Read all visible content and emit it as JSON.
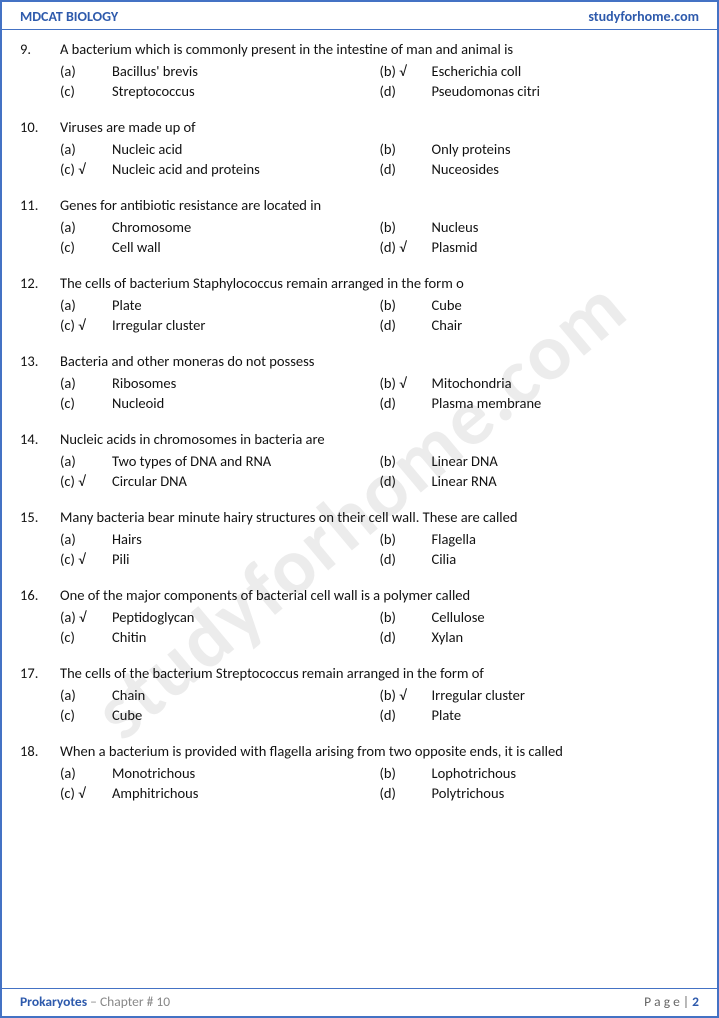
{
  "header": {
    "left": "MDCAT BIOLOGY",
    "right": "studyforhome.com"
  },
  "watermark": "studyforhome.com",
  "footer": {
    "subject": "Prokaryotes",
    "chapter": " – Chapter # 10",
    "page_label": "P a g e  | ",
    "page_num": "2"
  },
  "colors": {
    "border": "#4472c4",
    "heading": "#2e5aac",
    "text": "#111111",
    "muted": "#888888",
    "watermark": "rgba(128,128,128,0.15)"
  },
  "questions": [
    {
      "num": "9.",
      "text": "A bacterium which is commonly present in the intestine of man and animal is",
      "options": [
        {
          "label": "(a)",
          "text": "Bacillus' brevis",
          "correct": false
        },
        {
          "label": "(b) √",
          "text": "Escherichia coll",
          "correct": true
        },
        {
          "label": "(c)",
          "text": "Streptococcus",
          "correct": false
        },
        {
          "label": "(d)",
          "text": "Pseudomonas citri",
          "correct": false
        }
      ]
    },
    {
      "num": "10.",
      "text": "Viruses are made up of",
      "options": [
        {
          "label": "(a)",
          "text": "Nucleic acid",
          "correct": false
        },
        {
          "label": "(b)",
          "text": "Only proteins",
          "correct": false
        },
        {
          "label": "(c) √",
          "text": "Nucleic acid and proteins",
          "correct": true
        },
        {
          "label": "(d)",
          "text": "Nuceosides",
          "correct": false
        }
      ]
    },
    {
      "num": "11.",
      "text": "Genes for antibiotic resistance are located in",
      "options": [
        {
          "label": "(a)",
          "text": "Chromosome",
          "correct": false
        },
        {
          "label": "(b)",
          "text": "Nucleus",
          "correct": false
        },
        {
          "label": "(c)",
          "text": "Cell wall",
          "correct": false
        },
        {
          "label": "(d) √",
          "text": "Plasmid",
          "correct": true
        }
      ]
    },
    {
      "num": "12.",
      "text": "The cells of bacterium Staphylococcus remain arranged in the form o",
      "options": [
        {
          "label": "(a)",
          "text": "Plate",
          "correct": false
        },
        {
          "label": "(b)",
          "text": "Cube",
          "correct": false
        },
        {
          "label": "(c) √",
          "text": "Irregular cluster",
          "correct": true
        },
        {
          "label": "(d)",
          "text": "Chair",
          "correct": false
        }
      ]
    },
    {
      "num": "13.",
      "text": "Bacteria and other moneras do not possess",
      "options": [
        {
          "label": "(a)",
          "text": "Ribosomes",
          "correct": false
        },
        {
          "label": "(b) √",
          "text": "Mitochondria",
          "correct": true
        },
        {
          "label": "(c)",
          "text": "Nucleoid",
          "correct": false
        },
        {
          "label": "(d)",
          "text": "Plasma membrane",
          "correct": false
        }
      ]
    },
    {
      "num": "14.",
      "text": "Nucleic acids in chromosomes in bacteria are",
      "options": [
        {
          "label": "(a)",
          "text": "Two types of DNA and RNA",
          "correct": false
        },
        {
          "label": "(b)",
          "text": "Linear DNA",
          "correct": false
        },
        {
          "label": "(c) √",
          "text": "Circular DNA",
          "correct": true
        },
        {
          "label": "(d)",
          "text": "Linear RNA",
          "correct": false
        }
      ]
    },
    {
      "num": "15.",
      "text": "Many bacteria bear minute hairy structures on their cell wall. These are called",
      "options": [
        {
          "label": "(a)",
          "text": "Hairs",
          "correct": false
        },
        {
          "label": "(b)",
          "text": "Flagella",
          "correct": false
        },
        {
          "label": "(c) √",
          "text": "Pili",
          "correct": true
        },
        {
          "label": "(d)",
          "text": "Cilia",
          "correct": false
        }
      ]
    },
    {
      "num": "16.",
      "text": "One of the major components of bacterial cell wall is a polymer called",
      "options": [
        {
          "label": "(a) √",
          "text": "Peptidoglycan",
          "correct": true
        },
        {
          "label": "(b)",
          "text": "Cellulose",
          "correct": false
        },
        {
          "label": "(c)",
          "text": "Chitin",
          "correct": false
        },
        {
          "label": "(d)",
          "text": "Xylan",
          "correct": false
        }
      ]
    },
    {
      "num": "17.",
      "text": "The cells of the bacterium Streptococcus remain arranged in the form of",
      "options": [
        {
          "label": "(a)",
          "text": "Chain",
          "correct": false
        },
        {
          "label": "(b) √",
          "text": "Irregular cluster",
          "correct": true
        },
        {
          "label": "(c)",
          "text": "Cube",
          "correct": false
        },
        {
          "label": "(d)",
          "text": "Plate",
          "correct": false
        }
      ]
    },
    {
      "num": "18.",
      "text": "When a bacterium is provided with flagella arising from two opposite ends, it is called",
      "options": [
        {
          "label": "(a)",
          "text": "Monotrichous",
          "correct": false
        },
        {
          "label": "(b)",
          "text": "Lophotrichous",
          "correct": false
        },
        {
          "label": "(c) √",
          "text": "Amphitrichous",
          "correct": true
        },
        {
          "label": "(d)",
          "text": "Polytrichous",
          "correct": false
        }
      ]
    }
  ]
}
